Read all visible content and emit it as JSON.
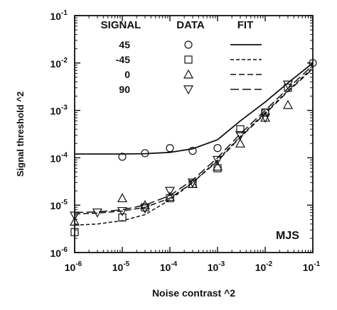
{
  "chart_data": {
    "type": "scatter",
    "xlabel": "Noise contrast ^2",
    "ylabel": "Signal threshold ^2",
    "xscale": "log",
    "yscale": "log",
    "xlim": [
      1e-06,
      0.1
    ],
    "ylim": [
      1e-06,
      0.1
    ],
    "x_ticks": [
      {
        "base": "10",
        "exp": "-6",
        "value": 1e-06
      },
      {
        "base": "10",
        "exp": "-5",
        "value": 1e-05
      },
      {
        "base": "10",
        "exp": "-4",
        "value": 0.0001
      },
      {
        "base": "10",
        "exp": "-3",
        "value": 0.001
      },
      {
        "base": "10",
        "exp": "-2",
        "value": 0.01
      },
      {
        "base": "10",
        "exp": "-1",
        "value": 0.1
      }
    ],
    "y_ticks": [
      {
        "base": "10",
        "exp": "-6",
        "value": 1e-06
      },
      {
        "base": "10",
        "exp": "-5",
        "value": 1e-05
      },
      {
        "base": "10",
        "exp": "-4",
        "value": 0.0001
      },
      {
        "base": "10",
        "exp": "-3",
        "value": 0.001
      },
      {
        "base": "10",
        "exp": "-2",
        "value": 0.01
      },
      {
        "base": "10",
        "exp": "-1",
        "value": 0.1
      }
    ],
    "legend": {
      "placement": "top-left",
      "headers": {
        "signal": "SIGNAL",
        "data": "DATA",
        "fit": "FIT"
      }
    },
    "annotation": "MJS",
    "series": [
      {
        "signal": "45",
        "marker": "circle",
        "line_style": "solid",
        "data": [
          [
            1e-05,
            0.000105
          ],
          [
            3e-05,
            0.000125
          ],
          [
            0.0001,
            0.00016
          ],
          [
            0.0003,
            0.00014
          ],
          [
            0.001,
            0.00016
          ],
          [
            0.01,
            0.0009
          ],
          [
            0.1,
            0.01
          ]
        ],
        "fit": [
          [
            1e-06,
            0.00012
          ],
          [
            1e-05,
            0.00012
          ],
          [
            3e-05,
            0.000122
          ],
          [
            0.0001,
            0.00013
          ],
          [
            0.0003,
            0.000155
          ],
          [
            0.001,
            0.00024
          ],
          [
            0.003,
            0.0006
          ],
          [
            0.01,
            0.0015
          ],
          [
            0.03,
            0.0038
          ],
          [
            0.1,
            0.01
          ]
        ]
      },
      {
        "signal": "-45",
        "marker": "square",
        "line_style": "short-dash",
        "data": [
          [
            1e-06,
            2.7e-06
          ],
          [
            1e-05,
            5.5e-06
          ],
          [
            3e-05,
            9e-06
          ],
          [
            0.0001,
            1.4e-05
          ],
          [
            0.0003,
            2.8e-05
          ],
          [
            0.001,
            6e-05
          ],
          [
            0.003,
            0.0004
          ],
          [
            0.01,
            0.0009
          ],
          [
            0.03,
            0.003
          ]
        ],
        "fit": [
          [
            1e-06,
            3.8e-06
          ],
          [
            3e-06,
            4e-06
          ],
          [
            1e-05,
            4.7e-06
          ],
          [
            3e-05,
            6.3e-06
          ],
          [
            0.0001,
            1.3e-05
          ],
          [
            0.0003,
            3e-05
          ],
          [
            0.001,
            9e-05
          ],
          [
            0.003,
            0.00028
          ],
          [
            0.01,
            0.0009
          ],
          [
            0.03,
            0.0026
          ],
          [
            0.1,
            0.008
          ]
        ]
      },
      {
        "signal": "0",
        "marker": "triangle-up",
        "line_style": "medium-dash",
        "data": [
          [
            1e-06,
            4.5e-06
          ],
          [
            1e-05,
            1.4e-05
          ],
          [
            3e-05,
            1e-05
          ],
          [
            0.0001,
            1.5e-05
          ],
          [
            0.0003,
            2.8e-05
          ],
          [
            0.001,
            6.5e-05
          ],
          [
            0.003,
            0.0002
          ],
          [
            0.01,
            0.0007
          ],
          [
            0.03,
            0.0013
          ]
        ],
        "fit": [
          [
            1e-06,
            6.5e-06
          ],
          [
            3e-06,
            6.8e-06
          ],
          [
            1e-05,
            7.5e-06
          ],
          [
            3e-05,
            9e-06
          ],
          [
            0.0001,
            1.4e-05
          ],
          [
            0.0003,
            3e-05
          ],
          [
            0.001,
            8.5e-05
          ],
          [
            0.003,
            0.00027
          ],
          [
            0.01,
            0.00085
          ],
          [
            0.03,
            0.0025
          ],
          [
            0.1,
            0.0075
          ]
        ]
      },
      {
        "signal": "90",
        "marker": "triangle-down",
        "line_style": "long-dash",
        "data": [
          [
            1e-06,
            6e-06
          ],
          [
            3e-06,
            7e-06
          ],
          [
            1e-05,
            7.5e-06
          ],
          [
            3e-05,
            8.5e-06
          ],
          [
            0.0001,
            2e-05
          ],
          [
            0.0003,
            3e-05
          ],
          [
            0.001,
            9e-05
          ],
          [
            0.003,
            0.0003
          ],
          [
            0.01,
            0.0007
          ],
          [
            0.03,
            0.0035
          ]
        ],
        "fit": [
          [
            1e-06,
            7e-06
          ],
          [
            3e-06,
            7.2e-06
          ],
          [
            1e-05,
            8e-06
          ],
          [
            3e-05,
            1e-05
          ],
          [
            0.0001,
            1.6e-05
          ],
          [
            0.0003,
            3.4e-05
          ],
          [
            0.001,
            0.0001
          ],
          [
            0.003,
            0.00032
          ],
          [
            0.01,
            0.001
          ],
          [
            0.03,
            0.0029
          ],
          [
            0.1,
            0.009
          ]
        ]
      }
    ]
  }
}
